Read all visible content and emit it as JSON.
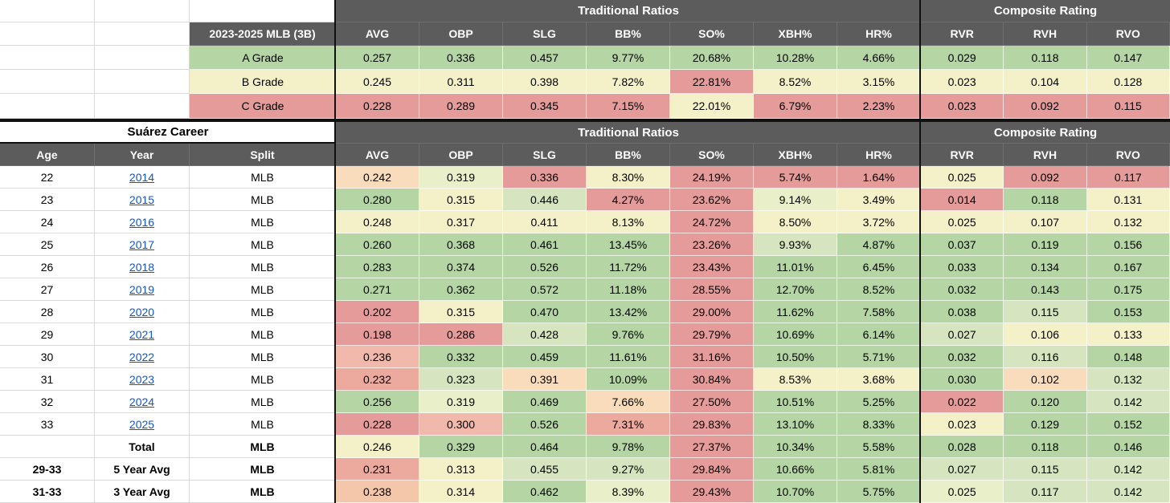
{
  "palette": {
    "r": "#e69b9b",
    "s1": "#ecaa9f",
    "s2": "#f1b9ab",
    "o": "#f4c6aa",
    "po": "#f8dcbb",
    "y": "#f4f0c8",
    "yg": "#e9efc9",
    "pg": "#d6e5bf",
    "g": "#b5d6a4",
    "header_bg": "#5c5c5c",
    "header_text": "#ffffff",
    "link": "#1155cc"
  },
  "bands": {
    "traditional": "Traditional Ratios",
    "composite": "Composite Rating"
  },
  "grade_table": {
    "label_header": "2023-2025 MLB (3B)",
    "columns": [
      "AVG",
      "OBP",
      "SLG",
      "BB%",
      "SO%",
      "XBH%",
      "HR%",
      "RVR",
      "RVH",
      "RVO"
    ],
    "rows": [
      {
        "label": "A Grade",
        "label_color": "g",
        "values": [
          "0.257",
          "0.336",
          "0.457",
          "9.77%",
          "20.68%",
          "10.28%",
          "4.66%",
          "0.029",
          "0.118",
          "0.147"
        ],
        "colors": [
          "g",
          "g",
          "g",
          "g",
          "g",
          "g",
          "g",
          "g",
          "g",
          "g"
        ]
      },
      {
        "label": "B Grade",
        "label_color": "y",
        "values": [
          "0.245",
          "0.311",
          "0.398",
          "7.82%",
          "22.81%",
          "8.52%",
          "3.15%",
          "0.023",
          "0.104",
          "0.128"
        ],
        "colors": [
          "y",
          "y",
          "y",
          "y",
          "r",
          "y",
          "y",
          "y",
          "y",
          "y"
        ]
      },
      {
        "label": "C Grade",
        "label_color": "r",
        "values": [
          "0.228",
          "0.289",
          "0.345",
          "7.15%",
          "22.01%",
          "6.79%",
          "2.23%",
          "0.023",
          "0.092",
          "0.115"
        ],
        "colors": [
          "r",
          "r",
          "r",
          "r",
          "y",
          "r",
          "r",
          "r",
          "r",
          "r"
        ]
      }
    ]
  },
  "career_table": {
    "title": "Suárez Career",
    "columns": [
      "Age",
      "Year",
      "Split",
      "AVG",
      "OBP",
      "SLG",
      "BB%",
      "SO%",
      "XBH%",
      "HR%",
      "RVR",
      "RVH",
      "RVO"
    ],
    "rows": [
      {
        "age": "22",
        "year": "2014",
        "link": true,
        "split": "MLB",
        "bold": false,
        "values": [
          "0.242",
          "0.319",
          "0.336",
          "8.30%",
          "24.19%",
          "5.74%",
          "1.64%",
          "0.025",
          "0.092",
          "0.117"
        ],
        "colors": [
          "po",
          "yg",
          "r",
          "y",
          "r",
          "r",
          "r",
          "y",
          "r",
          "r"
        ]
      },
      {
        "age": "23",
        "year": "2015",
        "link": true,
        "split": "MLB",
        "bold": false,
        "values": [
          "0.280",
          "0.315",
          "0.446",
          "4.27%",
          "23.62%",
          "9.14%",
          "3.49%",
          "0.014",
          "0.118",
          "0.131"
        ],
        "colors": [
          "g",
          "y",
          "pg",
          "r",
          "r",
          "yg",
          "y",
          "r",
          "g",
          "y"
        ]
      },
      {
        "age": "24",
        "year": "2016",
        "link": true,
        "split": "MLB",
        "bold": false,
        "values": [
          "0.248",
          "0.317",
          "0.411",
          "8.13%",
          "24.72%",
          "8.50%",
          "3.72%",
          "0.025",
          "0.107",
          "0.132"
        ],
        "colors": [
          "y",
          "y",
          "y",
          "y",
          "r",
          "y",
          "y",
          "y",
          "y",
          "y"
        ]
      },
      {
        "age": "25",
        "year": "2017",
        "link": true,
        "split": "MLB",
        "bold": false,
        "values": [
          "0.260",
          "0.368",
          "0.461",
          "13.45%",
          "23.26%",
          "9.93%",
          "4.87%",
          "0.037",
          "0.119",
          "0.156"
        ],
        "colors": [
          "g",
          "g",
          "g",
          "g",
          "r",
          "pg",
          "g",
          "g",
          "g",
          "g"
        ]
      },
      {
        "age": "26",
        "year": "2018",
        "link": true,
        "split": "MLB",
        "bold": false,
        "values": [
          "0.283",
          "0.374",
          "0.526",
          "11.72%",
          "23.43%",
          "11.01%",
          "6.45%",
          "0.033",
          "0.134",
          "0.167"
        ],
        "colors": [
          "g",
          "g",
          "g",
          "g",
          "r",
          "g",
          "g",
          "g",
          "g",
          "g"
        ]
      },
      {
        "age": "27",
        "year": "2019",
        "link": true,
        "split": "MLB",
        "bold": false,
        "values": [
          "0.271",
          "0.362",
          "0.572",
          "11.18%",
          "28.55%",
          "12.70%",
          "8.52%",
          "0.032",
          "0.143",
          "0.175"
        ],
        "colors": [
          "g",
          "g",
          "g",
          "g",
          "r",
          "g",
          "g",
          "g",
          "g",
          "g"
        ]
      },
      {
        "age": "28",
        "year": "2020",
        "link": true,
        "split": "MLB",
        "bold": false,
        "values": [
          "0.202",
          "0.315",
          "0.470",
          "13.42%",
          "29.00%",
          "11.62%",
          "7.58%",
          "0.038",
          "0.115",
          "0.153"
        ],
        "colors": [
          "r",
          "y",
          "g",
          "g",
          "r",
          "g",
          "g",
          "g",
          "pg",
          "g"
        ]
      },
      {
        "age": "29",
        "year": "2021",
        "link": true,
        "split": "MLB",
        "bold": false,
        "values": [
          "0.198",
          "0.286",
          "0.428",
          "9.76%",
          "29.79%",
          "10.69%",
          "6.14%",
          "0.027",
          "0.106",
          "0.133"
        ],
        "colors": [
          "r",
          "r",
          "pg",
          "g",
          "r",
          "g",
          "g",
          "pg",
          "y",
          "y"
        ]
      },
      {
        "age": "30",
        "year": "2022",
        "link": true,
        "split": "MLB",
        "bold": false,
        "values": [
          "0.236",
          "0.332",
          "0.459",
          "11.61%",
          "31.16%",
          "10.50%",
          "5.71%",
          "0.032",
          "0.116",
          "0.148"
        ],
        "colors": [
          "s2",
          "g",
          "g",
          "g",
          "r",
          "g",
          "g",
          "g",
          "pg",
          "g"
        ]
      },
      {
        "age": "31",
        "year": "2023",
        "link": true,
        "split": "MLB",
        "bold": false,
        "values": [
          "0.232",
          "0.323",
          "0.391",
          "10.09%",
          "30.84%",
          "8.53%",
          "3.68%",
          "0.030",
          "0.102",
          "0.132"
        ],
        "colors": [
          "s1",
          "pg",
          "po",
          "g",
          "r",
          "y",
          "y",
          "g",
          "po",
          "pg"
        ]
      },
      {
        "age": "32",
        "year": "2024",
        "link": true,
        "split": "MLB",
        "bold": false,
        "values": [
          "0.256",
          "0.319",
          "0.469",
          "7.66%",
          "27.50%",
          "10.51%",
          "5.25%",
          "0.022",
          "0.120",
          "0.142"
        ],
        "colors": [
          "g",
          "yg",
          "g",
          "po",
          "r",
          "g",
          "g",
          "r",
          "g",
          "pg"
        ]
      },
      {
        "age": "33",
        "year": "2025",
        "link": true,
        "split": "MLB",
        "bold": false,
        "values": [
          "0.228",
          "0.300",
          "0.526",
          "7.31%",
          "29.83%",
          "13.10%",
          "8.33%",
          "0.023",
          "0.129",
          "0.152"
        ],
        "colors": [
          "r",
          "s2",
          "g",
          "s1",
          "r",
          "g",
          "g",
          "y",
          "g",
          "g"
        ]
      },
      {
        "age": "",
        "year": "Total",
        "link": false,
        "split": "MLB",
        "bold": true,
        "values": [
          "0.246",
          "0.329",
          "0.464",
          "9.78%",
          "27.37%",
          "10.34%",
          "5.58%",
          "0.028",
          "0.118",
          "0.146"
        ],
        "colors": [
          "y",
          "g",
          "g",
          "g",
          "r",
          "g",
          "g",
          "g",
          "g",
          "g"
        ]
      },
      {
        "age": "29-33",
        "year": "5 Year Avg",
        "link": false,
        "split": "MLB",
        "bold": true,
        "values": [
          "0.231",
          "0.313",
          "0.455",
          "9.27%",
          "29.84%",
          "10.66%",
          "5.81%",
          "0.027",
          "0.115",
          "0.142"
        ],
        "colors": [
          "s1",
          "y",
          "pg",
          "pg",
          "r",
          "g",
          "g",
          "pg",
          "pg",
          "pg"
        ]
      },
      {
        "age": "31-33",
        "year": "3 Year Avg",
        "link": false,
        "split": "MLB",
        "bold": true,
        "values": [
          "0.238",
          "0.314",
          "0.462",
          "8.39%",
          "29.43%",
          "10.70%",
          "5.75%",
          "0.025",
          "0.117",
          "0.142"
        ],
        "colors": [
          "o",
          "y",
          "g",
          "yg",
          "r",
          "g",
          "g",
          "yg",
          "pg",
          "pg"
        ]
      }
    ]
  }
}
